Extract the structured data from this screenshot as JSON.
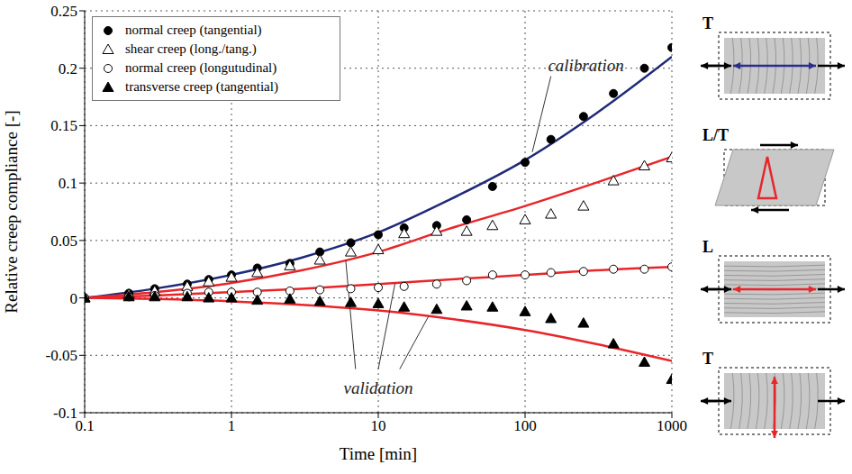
{
  "chart_data": {
    "type": "scatter",
    "x_label": "Time [min]",
    "y_label": "Relative creep compliance [-]",
    "log": "x",
    "grid": true,
    "legend": "upper left",
    "xlim": [
      0.1,
      1000
    ],
    "xticks": [
      0.1,
      1,
      10,
      100,
      1000
    ],
    "ylim": [
      -0.1,
      0.25
    ],
    "yticks": [
      -0.1,
      -0.05,
      0,
      0.05,
      0.1,
      0.15,
      0.2,
      0.25
    ],
    "x": [
      0.1,
      0.2,
      0.3,
      0.5,
      0.7,
      1,
      1.5,
      2.5,
      4,
      6.5,
      10,
      15,
      25,
      40,
      60,
      100,
      150,
      250,
      400,
      650,
      1000
    ],
    "series": [
      {
        "name": "normal creep (tangential)",
        "marker": "filled circle",
        "color": "#000000",
        "values": [
          0,
          0.004,
          0.008,
          0.012,
          0.016,
          0.02,
          0.026,
          0.03,
          0.04,
          0.048,
          0.055,
          0.061,
          0.063,
          0.068,
          0.097,
          0.118,
          0.138,
          0.158,
          0.178,
          0.2,
          0.218
        ]
      },
      {
        "name": "shear creep (long./tang.)",
        "marker": "open triangle",
        "color": "#000000",
        "values": [
          0,
          0.003,
          0.006,
          0.01,
          0.014,
          0.018,
          0.022,
          0.028,
          0.033,
          0.04,
          0.042,
          0.056,
          0.058,
          0.058,
          0.063,
          0.068,
          0.073,
          0.08,
          0.102,
          0.115,
          0.122
        ]
      },
      {
        "name": "normal creep (longutudinal)",
        "marker": "open circle",
        "color": "#000000",
        "values": [
          0,
          0.001,
          0.002,
          0.004,
          0.005,
          0.005,
          0.005,
          0.006,
          0.007,
          0.008,
          0.009,
          0.01,
          0.012,
          0.015,
          0.02,
          0.02,
          0.022,
          0.023,
          0.025,
          0.025,
          0.027
        ]
      },
      {
        "name": "transverse creep (tangential)",
        "marker": "filled triangle",
        "color": "#000000",
        "values": [
          0,
          0.001,
          0.001,
          0.001,
          0,
          0,
          -0.002,
          -0.001,
          -0.003,
          -0.004,
          -0.005,
          -0.008,
          -0.01,
          -0.007,
          -0.008,
          -0.012,
          -0.018,
          -0.022,
          -0.04,
          -0.056,
          -0.071
        ]
      }
    ],
    "fits": {
      "x": [
        0.1,
        0.3,
        1,
        3,
        10,
        30,
        100,
        300,
        1000
      ],
      "series": [
        {
          "of": "normal creep (tangential)",
          "type": "line",
          "line_style": "solid",
          "color": "#1f2a78",
          "values": [
            0,
            0.008,
            0.02,
            0.035,
            0.057,
            0.085,
            0.12,
            0.16,
            0.21
          ]
        },
        {
          "of": "shear creep (long./tang.)",
          "type": "line",
          "line_style": "solid",
          "color": "#e8262a",
          "values": [
            0,
            0.005,
            0.013,
            0.024,
            0.04,
            0.06,
            0.08,
            0.1,
            0.123
          ]
        },
        {
          "of": "normal creep (longutudinal)",
          "type": "line",
          "line_style": "solid",
          "color": "#e8262a",
          "values": [
            0,
            0.002,
            0.005,
            0.008,
            0.012,
            0.016,
            0.02,
            0.024,
            0.027
          ]
        },
        {
          "of": "transverse creep (tangential)",
          "type": "line",
          "line_style": "solid",
          "color": "#e8262a",
          "values": [
            0,
            -0.001,
            -0.003,
            -0.006,
            -0.011,
            -0.018,
            -0.028,
            -0.04,
            -0.055
          ]
        }
      ]
    },
    "annotations": [
      {
        "text": "calibration"
      },
      {
        "text": "validation"
      }
    ]
  },
  "diagram": {
    "panels": [
      {
        "label": "T",
        "color": "#2b2f8a"
      },
      {
        "label": "L/T",
        "color": "#e8262a"
      },
      {
        "label": "L",
        "color": "#e8262a"
      },
      {
        "label": "T",
        "color": "#e8262a"
      }
    ]
  }
}
